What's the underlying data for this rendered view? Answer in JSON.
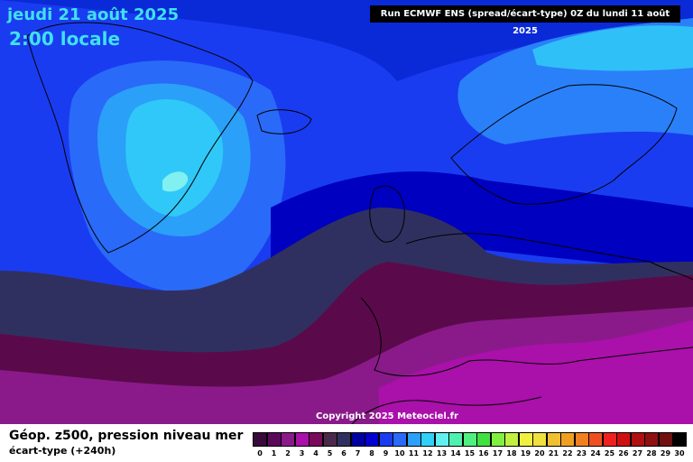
{
  "header": {
    "date": "jeudi 21 août 2025",
    "time": "2:00 locale",
    "run": "Run ECMWF ENS (spread/écart-type) 0Z du lundi 11 août 2025"
  },
  "map": {
    "copyright": "Copyright 2025 Meteociel.fr"
  },
  "footer": {
    "parameter": "Géop. z500, pression niveau mer",
    "subtitle": "écart-type  (+240h)"
  },
  "scale": {
    "labels": [
      "0",
      "1",
      "2",
      "3",
      "4",
      "5",
      "6",
      "7",
      "8",
      "9",
      "10",
      "11",
      "12",
      "13",
      "14",
      "15",
      "16",
      "17",
      "18",
      "19",
      "20",
      "21",
      "22",
      "23",
      "24",
      "25",
      "26",
      "27",
      "28",
      "29",
      "30"
    ],
    "colors": [
      "#3a0a3a",
      "#5a0a5a",
      "#8a1a8a",
      "#aa10aa",
      "#7a0a5a",
      "#4a2a4a",
      "#303060",
      "#0000a0",
      "#0000d0",
      "#1a3cf0",
      "#2a6af8",
      "#2aa0f8",
      "#30d0f8",
      "#60f0f0",
      "#50f0b0",
      "#50f080",
      "#40e040",
      "#80f040",
      "#c0f040",
      "#f0f040",
      "#f0e040",
      "#f0c030",
      "#f0a020",
      "#f08020",
      "#f05020",
      "#f02020",
      "#d01010",
      "#b01010",
      "#901010",
      "#701010",
      "#000000"
    ]
  }
}
